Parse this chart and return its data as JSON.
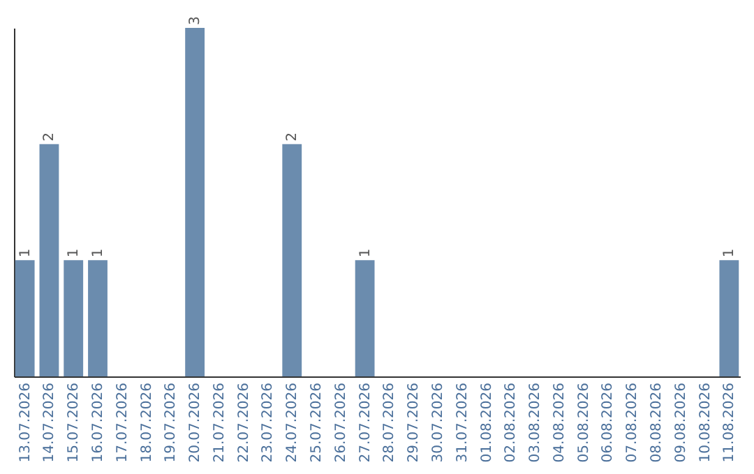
{
  "chart_data": {
    "type": "bar",
    "categories": [
      "13.07.2026",
      "14.07.2026",
      "15.07.2026",
      "16.07.2026",
      "17.07.2026",
      "18.07.2026",
      "19.07.2026",
      "20.07.2026",
      "21.07.2026",
      "22.07.2026",
      "23.07.2026",
      "24.07.2026",
      "25.07.2026",
      "26.07.2026",
      "27.07.2026",
      "28.07.2026",
      "29.07.2026",
      "30.07.2026",
      "31.07.2026",
      "01.08.2026",
      "02.08.2026",
      "03.08.2026",
      "04.08.2026",
      "05.08.2026",
      "06.08.2026",
      "07.08.2026",
      "08.08.2026",
      "09.08.2026",
      "10.08.2026",
      "11.08.2026"
    ],
    "values": [
      1,
      2,
      1,
      1,
      0,
      0,
      0,
      3,
      0,
      0,
      0,
      2,
      0,
      0,
      1,
      0,
      0,
      0,
      0,
      0,
      0,
      0,
      0,
      0,
      0,
      0,
      0,
      0,
      0,
      1
    ],
    "value_labels": [
      "1",
      "2",
      "1",
      "1",
      null,
      null,
      null,
      "3",
      null,
      null,
      null,
      "2",
      null,
      null,
      "1",
      null,
      null,
      null,
      null,
      null,
      null,
      null,
      null,
      null,
      null,
      null,
      null,
      null,
      null,
      "1"
    ],
    "color": "#6b8cae",
    "tick_labels": "x"
  }
}
